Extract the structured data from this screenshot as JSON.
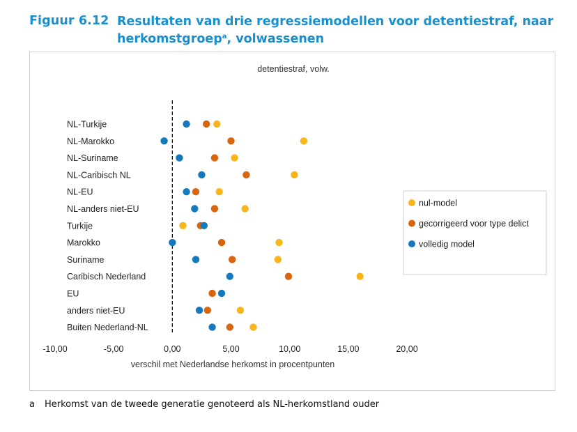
{
  "figure": {
    "number": "Figuur 6.12",
    "title_line1": "Resultaten van drie regressiemodellen voor detentiestraf, naar",
    "title_line2": "herkomstgroep",
    "title_sup": "a",
    "title_line2_end": ", volwassenen"
  },
  "footnote": {
    "marker": "a",
    "text": "Herkomst van de tweede generatie genoteerd als NL-herkomstland ouder"
  },
  "colors": {
    "nul": "#f9b51d",
    "gecorrigeerd": "#d9650e",
    "volledig": "#1479bd"
  },
  "chart_data": {
    "type": "scatter",
    "title": "detentiestraf, volw.",
    "xlabel": "verschil met Nederlandse herkomst in procentpunten",
    "xlim": [
      -10,
      20
    ],
    "xticks": [
      "-10,00",
      "-5,00",
      "0,00",
      "5,00",
      "10,00",
      "15,00",
      "20,00"
    ],
    "xtick_values": [
      -10,
      -5,
      0,
      5,
      10,
      15,
      20
    ],
    "reference_line": 0,
    "legend_position": "right",
    "categories": [
      "NL-Turkije",
      "NL-Marokko",
      "NL-Suriname",
      "NL-Caribisch NL",
      "NL-EU",
      "NL-anders niet-EU",
      "Turkije",
      "Marokko",
      "Suriname",
      "Caribisch Nederland",
      "EU",
      "anders niet-EU",
      "Buiten Nederland-NL"
    ],
    "series": [
      {
        "name": "nul-model",
        "key": "nul",
        "values": [
          3.8,
          11.2,
          5.3,
          10.4,
          4.0,
          6.2,
          0.9,
          9.1,
          9.0,
          16.0,
          3.4,
          5.8,
          6.9
        ]
      },
      {
        "name": "gecorrigeerd voor type delict",
        "key": "gecorrigeerd",
        "values": [
          2.9,
          5.0,
          3.6,
          6.3,
          2.0,
          3.6,
          2.4,
          4.2,
          5.1,
          9.9,
          3.4,
          3.0,
          4.9
        ]
      },
      {
        "name": "volledig model",
        "key": "volledig",
        "values": [
          1.2,
          -0.7,
          0.6,
          2.5,
          1.2,
          1.9,
          2.7,
          0.0,
          2.0,
          4.9,
          4.2,
          2.3,
          3.4
        ]
      }
    ]
  }
}
